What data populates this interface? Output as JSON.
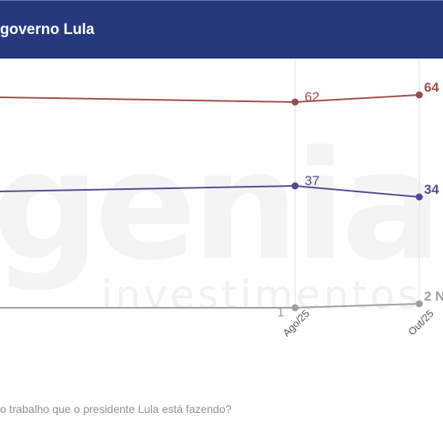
{
  "header": {
    "title": "governo Lula"
  },
  "footnote": "o trabalho que o presidente Lula está fazendo?",
  "watermark": {
    "brand": "genial",
    "sub": "investimentos"
  },
  "colors": {
    "header_bg": "#26397f",
    "approve": "#9b4f4a",
    "disapprove": "#4e4d93",
    "unsure": "#a0a0a0"
  },
  "chart_data": {
    "type": "line",
    "categories": [
      "Ago/25",
      "Out/25"
    ],
    "series": [
      {
        "key": "approve",
        "values": [
          62,
          64
        ],
        "labels": [
          "62",
          "64"
        ]
      },
      {
        "key": "disapprove",
        "values": [
          37,
          34
        ],
        "labels": [
          "37",
          "34"
        ]
      },
      {
        "key": "unsure",
        "values": [
          1,
          2
        ],
        "labels": [
          "1",
          "2 N"
        ]
      }
    ],
    "grid": "vertical gridlines at each period"
  }
}
